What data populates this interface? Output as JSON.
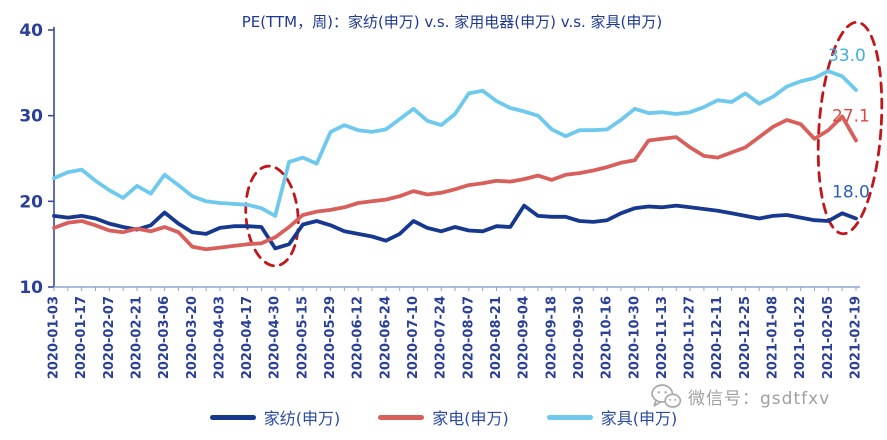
{
  "title": "PE(TTM，周)：家纺(申万) v.s. 家用电器(申万) v.s. 家具(申万)",
  "watermark": {
    "icon": "wechat-icon",
    "label": "微信号：gsdtfxv"
  },
  "colors": {
    "background": "#FFFFFF",
    "y_axis": "#3A4A9A",
    "x_axis": "#8FA6D4",
    "tick_label": "#2B3F96",
    "title": "#1F3896",
    "highlight": "#C0161C"
  },
  "legend": [
    {
      "label": "家纺(申万)",
      "color": "#16388F"
    },
    {
      "label": "家电(申万)",
      "color": "#D8605C"
    },
    {
      "label": "家具(申万)",
      "color": "#6EC9EC"
    }
  ],
  "chart_data": {
    "type": "line",
    "title": "PE(TTM，周)：家纺(申万) v.s. 家用电器(申万) v.s. 家具(申万)",
    "ylabel": "",
    "xlabel": "",
    "ylim": [
      10,
      40
    ],
    "yticks": [
      10,
      20,
      30,
      40
    ],
    "grid": false,
    "legend_position": "bottom",
    "n_points": 59,
    "label_every": 2,
    "x_tick_labels": [
      "2020-01-03",
      "2020-01-17",
      "2020-02-07",
      "2020-02-21",
      "2020-03-06",
      "2020-03-20",
      "2020-04-03",
      "2020-04-17",
      "2020-04-30",
      "2020-05-15",
      "2020-05-29",
      "2020-06-12",
      "2020-06-24",
      "2020-07-10",
      "2020-07-24",
      "2020-08-07",
      "2020-08-21",
      "2020-09-04",
      "2020-09-18",
      "2020-09-30",
      "2020-10-16",
      "2020-10-30",
      "2020-11-13",
      "2020-11-27",
      "2020-12-11",
      "2020-12-25",
      "2021-01-08",
      "2021-01-22",
      "2021-02-05",
      "2021-02-19"
    ],
    "series": [
      {
        "name": "家纺(申万)",
        "color": "#16388F",
        "end_label": "18.0",
        "end_label_color": "#2E5FB5",
        "values": [
          18.3,
          18.1,
          18.3,
          18.0,
          17.4,
          17.0,
          16.7,
          17.2,
          18.7,
          17.4,
          16.4,
          16.2,
          16.9,
          17.1,
          17.1,
          17.0,
          14.5,
          15.0,
          17.3,
          17.7,
          17.2,
          16.5,
          16.2,
          15.9,
          15.4,
          16.2,
          17.7,
          16.9,
          16.5,
          17.0,
          16.6,
          16.5,
          17.1,
          17.0,
          19.5,
          18.3,
          18.2,
          18.2,
          17.7,
          17.6,
          17.8,
          18.6,
          19.2,
          19.4,
          19.3,
          19.5,
          19.3,
          19.1,
          18.9,
          18.6,
          18.3,
          18.0,
          18.3,
          18.4,
          18.1,
          17.8,
          17.7,
          18.6,
          18.0
        ]
      },
      {
        "name": "家电(申万)",
        "color": "#D8605C",
        "end_label": "27.1",
        "end_label_color": "#D94A46",
        "values": [
          16.9,
          17.5,
          17.7,
          17.2,
          16.6,
          16.4,
          16.8,
          16.5,
          17.0,
          16.4,
          14.7,
          14.4,
          14.6,
          14.8,
          15.0,
          15.1,
          15.8,
          17.0,
          18.4,
          18.8,
          19.0,
          19.3,
          19.8,
          20.0,
          20.2,
          20.6,
          21.2,
          20.8,
          21.0,
          21.4,
          21.9,
          22.1,
          22.4,
          22.3,
          22.6,
          23.0,
          22.5,
          23.1,
          23.3,
          23.6,
          24.0,
          24.5,
          24.8,
          27.1,
          27.3,
          27.5,
          26.3,
          25.3,
          25.1,
          25.7,
          26.3,
          27.5,
          28.7,
          29.5,
          29.0,
          27.3,
          28.3,
          29.9,
          27.1
        ]
      },
      {
        "name": "家具(申万)",
        "color": "#6EC9EC",
        "end_label": "33.0",
        "end_label_color": "#3FAFE0",
        "values": [
          22.7,
          23.4,
          23.7,
          22.4,
          21.3,
          20.4,
          21.8,
          20.9,
          23.1,
          21.9,
          20.6,
          20.0,
          19.8,
          19.7,
          19.6,
          19.2,
          18.3,
          24.6,
          25.1,
          24.4,
          28.1,
          28.9,
          28.3,
          28.1,
          28.4,
          29.6,
          30.8,
          29.4,
          28.9,
          30.2,
          32.6,
          32.9,
          31.7,
          30.9,
          30.5,
          30.0,
          28.4,
          27.6,
          28.3,
          28.3,
          28.4,
          29.5,
          30.8,
          30.3,
          30.4,
          30.2,
          30.4,
          31.0,
          31.8,
          31.6,
          32.6,
          31.4,
          32.2,
          33.4,
          34.0,
          34.4,
          35.2,
          34.6,
          33.0
        ]
      }
    ],
    "highlights": [
      {
        "shape": "dashed-ellipse",
        "color": "#C0161C",
        "note": "2020-04-30 trough"
      },
      {
        "shape": "dashed-ellipse",
        "color": "#C0161C",
        "note": "latest values 18.0 / 27.1 / 33.0"
      }
    ]
  }
}
